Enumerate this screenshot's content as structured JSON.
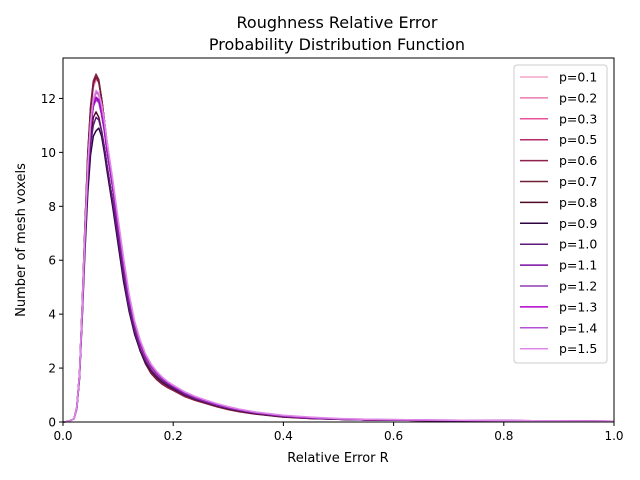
{
  "chart_data": {
    "type": "line",
    "title_line1": "Roughness Relative Error",
    "title_line2": "Probability Distribution Function",
    "xlabel": "Relative Error R",
    "ylabel": "Number of mesh voxels",
    "xlim": [
      0.0,
      1.0
    ],
    "ylim": [
      0,
      13.5
    ],
    "xticks": [
      0.0,
      0.2,
      0.4,
      0.6,
      0.8,
      1.0
    ],
    "xtick_labels": [
      "0.0",
      "0.2",
      "0.4",
      "0.6",
      "0.8",
      "1.0"
    ],
    "yticks": [
      0,
      2,
      4,
      6,
      8,
      10,
      12
    ],
    "ytick_labels": [
      "0",
      "2",
      "4",
      "6",
      "8",
      "10",
      "12"
    ],
    "grid": false,
    "legend_position": "top-right",
    "x": [
      0.0,
      0.01,
      0.02,
      0.025,
      0.03,
      0.035,
      0.04,
      0.045,
      0.05,
      0.055,
      0.06,
      0.065,
      0.07,
      0.075,
      0.08,
      0.09,
      0.1,
      0.11,
      0.12,
      0.13,
      0.14,
      0.15,
      0.16,
      0.17,
      0.18,
      0.19,
      0.2,
      0.22,
      0.24,
      0.26,
      0.28,
      0.3,
      0.32,
      0.35,
      0.4,
      0.45,
      0.5,
      0.55,
      0.6,
      0.7,
      0.8,
      0.9,
      1.0
    ],
    "series": [
      {
        "name": "p=0.1",
        "color": "#f4a6c8",
        "values": [
          0.0,
          0.02,
          0.12,
          0.55,
          1.8,
          4.3,
          7.1,
          9.4,
          11.0,
          11.9,
          12.2,
          12.1,
          11.6,
          10.9,
          10.2,
          8.8,
          7.3,
          5.9,
          4.6,
          3.6,
          2.9,
          2.4,
          2.05,
          1.8,
          1.6,
          1.45,
          1.3,
          1.05,
          0.88,
          0.74,
          0.62,
          0.52,
          0.44,
          0.34,
          0.22,
          0.15,
          0.11,
          0.09,
          0.08,
          0.06,
          0.05,
          0.04,
          0.03
        ]
      },
      {
        "name": "p=0.2",
        "color": "#ee7bb0",
        "values": [
          0.0,
          0.02,
          0.12,
          0.55,
          1.8,
          4.4,
          7.3,
          9.8,
          11.5,
          12.4,
          12.7,
          12.6,
          12.0,
          11.2,
          10.4,
          8.9,
          7.4,
          5.9,
          4.6,
          3.6,
          2.85,
          2.35,
          2.0,
          1.75,
          1.55,
          1.4,
          1.27,
          1.02,
          0.85,
          0.72,
          0.6,
          0.5,
          0.42,
          0.33,
          0.21,
          0.15,
          0.11,
          0.09,
          0.08,
          0.06,
          0.05,
          0.04,
          0.03
        ]
      },
      {
        "name": "p=0.3",
        "color": "#e8509a",
        "values": [
          0.0,
          0.02,
          0.12,
          0.55,
          1.8,
          4.4,
          7.3,
          9.8,
          11.5,
          12.5,
          12.8,
          12.6,
          12.0,
          11.2,
          10.4,
          8.9,
          7.3,
          5.8,
          4.5,
          3.5,
          2.8,
          2.3,
          1.95,
          1.7,
          1.5,
          1.35,
          1.22,
          0.98,
          0.82,
          0.7,
          0.58,
          0.48,
          0.4,
          0.31,
          0.2,
          0.14,
          0.1,
          0.08,
          0.07,
          0.05,
          0.04,
          0.03,
          0.02
        ]
      },
      {
        "name": "p=0.5",
        "color": "#b5286a",
        "values": [
          0.0,
          0.02,
          0.12,
          0.55,
          1.8,
          4.4,
          7.3,
          9.9,
          11.6,
          12.6,
          12.85,
          12.6,
          12.0,
          11.2,
          10.3,
          8.8,
          7.2,
          5.7,
          4.4,
          3.4,
          2.7,
          2.2,
          1.85,
          1.62,
          1.45,
          1.32,
          1.2,
          0.97,
          0.81,
          0.69,
          0.57,
          0.47,
          0.39,
          0.3,
          0.19,
          0.13,
          0.1,
          0.08,
          0.07,
          0.05,
          0.04,
          0.03,
          0.02
        ]
      },
      {
        "name": "p=0.6",
        "color": "#8f1f4e",
        "values": [
          0.0,
          0.02,
          0.12,
          0.55,
          1.8,
          4.4,
          7.4,
          10.0,
          11.7,
          12.65,
          12.9,
          12.7,
          12.0,
          11.2,
          10.3,
          8.7,
          7.1,
          5.6,
          4.3,
          3.35,
          2.65,
          2.15,
          1.8,
          1.57,
          1.4,
          1.27,
          1.17,
          0.95,
          0.8,
          0.68,
          0.56,
          0.46,
          0.38,
          0.29,
          0.18,
          0.13,
          0.1,
          0.08,
          0.07,
          0.05,
          0.04,
          0.03,
          0.02
        ]
      },
      {
        "name": "p=0.7",
        "color": "#6e2035",
        "values": [
          0.0,
          0.02,
          0.12,
          0.55,
          1.8,
          4.4,
          7.3,
          9.9,
          11.6,
          12.55,
          12.8,
          12.6,
          12.0,
          11.2,
          10.3,
          8.7,
          7.1,
          5.6,
          4.3,
          3.35,
          2.65,
          2.15,
          1.8,
          1.6,
          1.45,
          1.33,
          1.22,
          1.0,
          0.83,
          0.7,
          0.58,
          0.48,
          0.4,
          0.3,
          0.19,
          0.13,
          0.1,
          0.08,
          0.07,
          0.05,
          0.04,
          0.03,
          0.02
        ]
      },
      {
        "name": "p=0.8",
        "color": "#4d0a24",
        "values": [
          0.0,
          0.02,
          0.12,
          0.5,
          1.7,
          4.1,
          6.8,
          9.1,
          10.5,
          11.3,
          11.5,
          11.3,
          10.8,
          10.2,
          9.5,
          8.2,
          6.8,
          5.4,
          4.2,
          3.3,
          2.65,
          2.2,
          1.9,
          1.68,
          1.52,
          1.38,
          1.27,
          1.05,
          0.87,
          0.73,
          0.6,
          0.5,
          0.42,
          0.32,
          0.2,
          0.14,
          0.1,
          0.08,
          0.07,
          0.05,
          0.04,
          0.03,
          0.02
        ]
      },
      {
        "name": "p=0.9",
        "color": "#2c0340",
        "values": [
          0.0,
          0.02,
          0.12,
          0.48,
          1.6,
          3.9,
          6.4,
          8.5,
          9.9,
          10.6,
          10.8,
          10.9,
          10.6,
          10.0,
          9.3,
          8.0,
          6.6,
          5.2,
          4.1,
          3.25,
          2.65,
          2.2,
          1.9,
          1.68,
          1.5,
          1.36,
          1.24,
          1.02,
          0.85,
          0.72,
          0.6,
          0.5,
          0.42,
          0.32,
          0.2,
          0.14,
          0.1,
          0.08,
          0.07,
          0.05,
          0.04,
          0.03,
          0.02
        ]
      },
      {
        "name": "p=1.0",
        "color": "#5c1a7a",
        "values": [
          0.0,
          0.02,
          0.12,
          0.5,
          1.7,
          4.0,
          6.7,
          8.9,
          10.3,
          11.0,
          11.3,
          11.2,
          10.8,
          10.2,
          9.5,
          8.2,
          6.8,
          5.4,
          4.2,
          3.35,
          2.7,
          2.25,
          1.92,
          1.7,
          1.52,
          1.38,
          1.26,
          1.03,
          0.86,
          0.73,
          0.61,
          0.51,
          0.43,
          0.33,
          0.21,
          0.14,
          0.1,
          0.08,
          0.07,
          0.05,
          0.04,
          0.03,
          0.02
        ]
      },
      {
        "name": "p=1.1",
        "color": "#7a0fa0",
        "values": [
          0.0,
          0.02,
          0.12,
          0.52,
          1.75,
          4.2,
          7.0,
          9.3,
          10.9,
          11.7,
          12.0,
          11.9,
          11.4,
          10.8,
          10.0,
          8.7,
          7.2,
          5.8,
          4.5,
          3.6,
          2.9,
          2.4,
          2.05,
          1.8,
          1.6,
          1.45,
          1.32,
          1.08,
          0.9,
          0.76,
          0.63,
          0.53,
          0.44,
          0.34,
          0.22,
          0.15,
          0.11,
          0.09,
          0.08,
          0.06,
          0.05,
          0.04,
          0.03
        ]
      },
      {
        "name": "p=1.2",
        "color": "#8f3fb0",
        "values": [
          0.0,
          0.02,
          0.12,
          0.52,
          1.75,
          4.2,
          7.0,
          9.3,
          10.9,
          11.7,
          11.95,
          11.85,
          11.4,
          10.8,
          10.0,
          8.7,
          7.2,
          5.8,
          4.5,
          3.6,
          2.9,
          2.4,
          2.05,
          1.8,
          1.6,
          1.45,
          1.32,
          1.08,
          0.9,
          0.76,
          0.63,
          0.53,
          0.44,
          0.34,
          0.22,
          0.15,
          0.11,
          0.09,
          0.08,
          0.06,
          0.05,
          0.04,
          0.03
        ]
      },
      {
        "name": "p=1.3",
        "color": "#b000c8",
        "values": [
          0.0,
          0.02,
          0.12,
          0.52,
          1.75,
          4.2,
          7.0,
          9.3,
          10.9,
          11.75,
          12.05,
          11.95,
          11.5,
          10.9,
          10.1,
          8.8,
          7.3,
          5.9,
          4.6,
          3.65,
          2.95,
          2.45,
          2.1,
          1.84,
          1.63,
          1.47,
          1.34,
          1.1,
          0.92,
          0.78,
          0.65,
          0.55,
          0.46,
          0.35,
          0.23,
          0.16,
          0.12,
          0.09,
          0.08,
          0.06,
          0.05,
          0.04,
          0.03
        ]
      },
      {
        "name": "p=1.4",
        "color": "#b44fd6",
        "values": [
          0.0,
          0.02,
          0.12,
          0.53,
          1.78,
          4.3,
          7.1,
          9.5,
          11.1,
          11.95,
          12.25,
          12.15,
          11.7,
          11.1,
          10.3,
          8.95,
          7.45,
          6.0,
          4.7,
          3.7,
          3.0,
          2.5,
          2.12,
          1.86,
          1.65,
          1.49,
          1.36,
          1.12,
          0.94,
          0.8,
          0.67,
          0.56,
          0.47,
          0.36,
          0.24,
          0.17,
          0.12,
          0.1,
          0.09,
          0.07,
          0.05,
          0.04,
          0.03
        ]
      },
      {
        "name": "p=1.5",
        "color": "#e08ae8",
        "values": [
          0.0,
          0.02,
          0.12,
          0.53,
          1.78,
          4.3,
          7.1,
          9.5,
          11.1,
          12.0,
          12.3,
          12.2,
          11.8,
          11.2,
          10.4,
          9.05,
          7.55,
          6.1,
          4.75,
          3.75,
          3.05,
          2.52,
          2.15,
          1.88,
          1.67,
          1.5,
          1.37,
          1.13,
          0.95,
          0.81,
          0.68,
          0.57,
          0.48,
          0.37,
          0.25,
          0.18,
          0.13,
          0.1,
          0.09,
          0.07,
          0.05,
          0.04,
          0.03
        ]
      }
    ]
  }
}
